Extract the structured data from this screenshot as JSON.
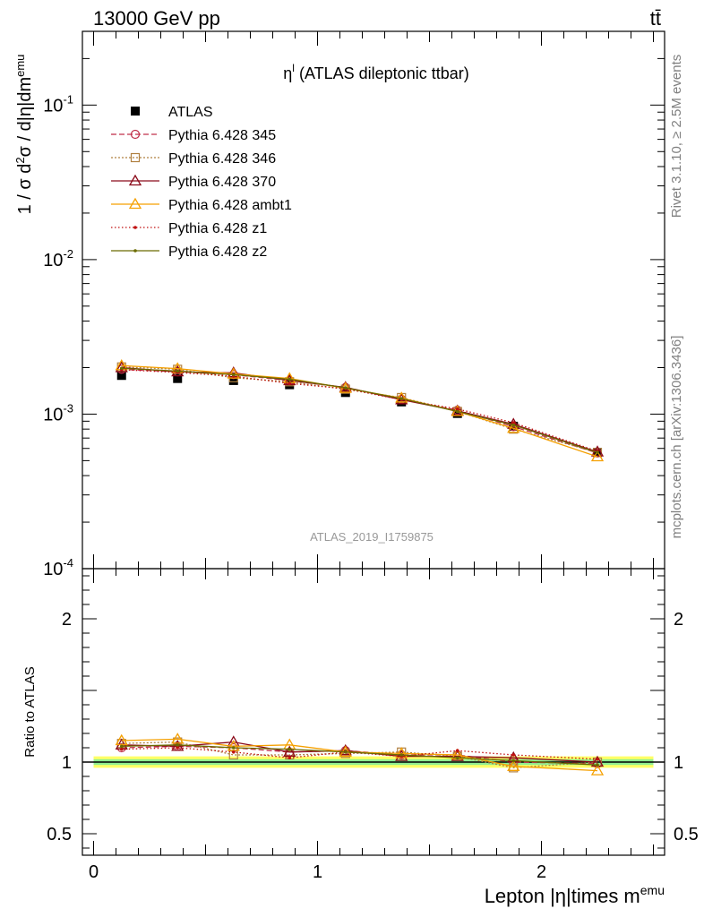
{
  "header": {
    "energy_label": "13000 GeV pp",
    "process_label": "tt̄"
  },
  "side_labels": {
    "rivet": "Rivet 3.1.10, ≥ 2.5M events",
    "mcplots": "mcplots.cern.ch [arXiv:1306.3436]"
  },
  "watermark": "ATLAS_2019_I1759875",
  "chart_data": [
    {
      "type": "line",
      "panel": "main",
      "title": "η^l (ATLAS dileptonic ttbar)",
      "ylabel": "1 / σ d²σ / d|η|dm^emu",
      "yscale": "log",
      "ylim": [
        0.0001,
        0.3
      ],
      "xlim": [
        -0.05,
        2.55
      ],
      "y_tick_labels": [
        "10^-4",
        "10^-3",
        "10^-2",
        "10^-1"
      ],
      "x": [
        0.125,
        0.375,
        0.625,
        0.875,
        1.125,
        1.375,
        1.625,
        1.875,
        2.25
      ],
      "series": [
        {
          "name": "ATLAS",
          "color": "#000000",
          "marker": "filled-square",
          "dash": "none",
          "values": [
            0.00178,
            0.0017,
            0.00165,
            0.00155,
            0.00138,
            0.0012,
            0.00101,
            0.000835,
            0.000565
          ]
        },
        {
          "name": "Pythia 6.428 345",
          "color": "#c0304a",
          "marker": "open-circle",
          "dash": "6,3",
          "values": [
            0.00195,
            0.00188,
            0.0018,
            0.00165,
            0.00149,
            0.00125,
            0.00106,
            0.00083,
            0.00056
          ]
        },
        {
          "name": "Pythia 6.428 346",
          "color": "#b08040",
          "marker": "open-square",
          "dash": "2,2",
          "values": [
            0.00202,
            0.00195,
            0.00172,
            0.00162,
            0.00145,
            0.00128,
            0.00104,
            0.0008,
            0.000565
          ]
        },
        {
          "name": "Pythia 6.428 370",
          "color": "#8b0a1a",
          "marker": "open-triangle",
          "dash": "none",
          "values": [
            0.002,
            0.00188,
            0.00185,
            0.00165,
            0.00149,
            0.00124,
            0.00105,
            0.00086,
            0.00057
          ]
        },
        {
          "name": "Pythia 6.428 ambt1",
          "color": "#f5a000",
          "marker": "open-triangle",
          "dash": "none",
          "values": [
            0.00206,
            0.00197,
            0.00182,
            0.0017,
            0.00147,
            0.00127,
            0.00104,
            0.00081,
            0.00053
          ]
        },
        {
          "name": "Pythia 6.428 z1",
          "color": "#c01010",
          "marker": "small-dot",
          "dash": "1.5,2.5",
          "values": [
            0.00194,
            0.00186,
            0.00176,
            0.00158,
            0.00146,
            0.00124,
            0.00108,
            0.00088,
            0.000575
          ]
        },
        {
          "name": "Pythia 6.428 z2",
          "color": "#6b6b00",
          "marker": "small-dot",
          "dash": "none",
          "values": [
            0.00198,
            0.0019,
            0.0018,
            0.00168,
            0.00148,
            0.00126,
            0.00104,
            0.00085,
            0.000565
          ]
        }
      ]
    },
    {
      "type": "line",
      "panel": "ratio",
      "ylabel": "Ratio to ATLAS",
      "xlabel": "Lepton |η|times m^emu",
      "ylim": [
        0.35,
        2.35
      ],
      "xlim": [
        -0.05,
        2.55
      ],
      "y_tick_labels": [
        "0.5",
        "1",
        "2"
      ],
      "x_tick_labels": [
        "0",
        "1",
        "2"
      ],
      "band": {
        "inner": [
          0.98,
          1.02
        ],
        "outer": [
          0.96,
          1.04
        ],
        "inner_color": "#90ee90",
        "outer_color": "#ffff66"
      },
      "x": [
        0.125,
        0.375,
        0.625,
        0.875,
        1.125,
        1.375,
        1.625,
        1.875,
        2.25
      ],
      "series": [
        {
          "name": "Pythia 6.428 345",
          "color": "#c0304a",
          "marker": "open-circle",
          "dash": "6,3",
          "values": [
            1.1,
            1.11,
            1.1,
            1.07,
            1.08,
            1.05,
            1.05,
            1.0,
            0.99
          ]
        },
        {
          "name": "Pythia 6.428 346",
          "color": "#b08040",
          "marker": "open-square",
          "dash": "2,2",
          "values": [
            1.13,
            1.14,
            1.05,
            1.05,
            1.06,
            1.07,
            1.04,
            0.96,
            1.0
          ]
        },
        {
          "name": "Pythia 6.428 370",
          "color": "#8b0a1a",
          "marker": "open-triangle",
          "dash": "none",
          "values": [
            1.12,
            1.11,
            1.14,
            1.07,
            1.08,
            1.04,
            1.04,
            1.03,
            1.0
          ]
        },
        {
          "name": "Pythia 6.428 ambt1",
          "color": "#f5a000",
          "marker": "open-triangle",
          "dash": "none",
          "values": [
            1.15,
            1.16,
            1.11,
            1.12,
            1.07,
            1.06,
            1.05,
            0.97,
            0.94
          ]
        },
        {
          "name": "Pythia 6.428 z1",
          "color": "#c01010",
          "marker": "small-dot",
          "dash": "1.5,2.5",
          "values": [
            1.09,
            1.1,
            1.07,
            1.03,
            1.07,
            1.04,
            1.08,
            1.05,
            1.02
          ]
        },
        {
          "name": "Pythia 6.428 z2",
          "color": "#6b6b00",
          "marker": "small-dot",
          "dash": "none",
          "values": [
            1.11,
            1.12,
            1.1,
            1.09,
            1.07,
            1.05,
            1.03,
            1.01,
            0.98
          ]
        }
      ]
    }
  ]
}
